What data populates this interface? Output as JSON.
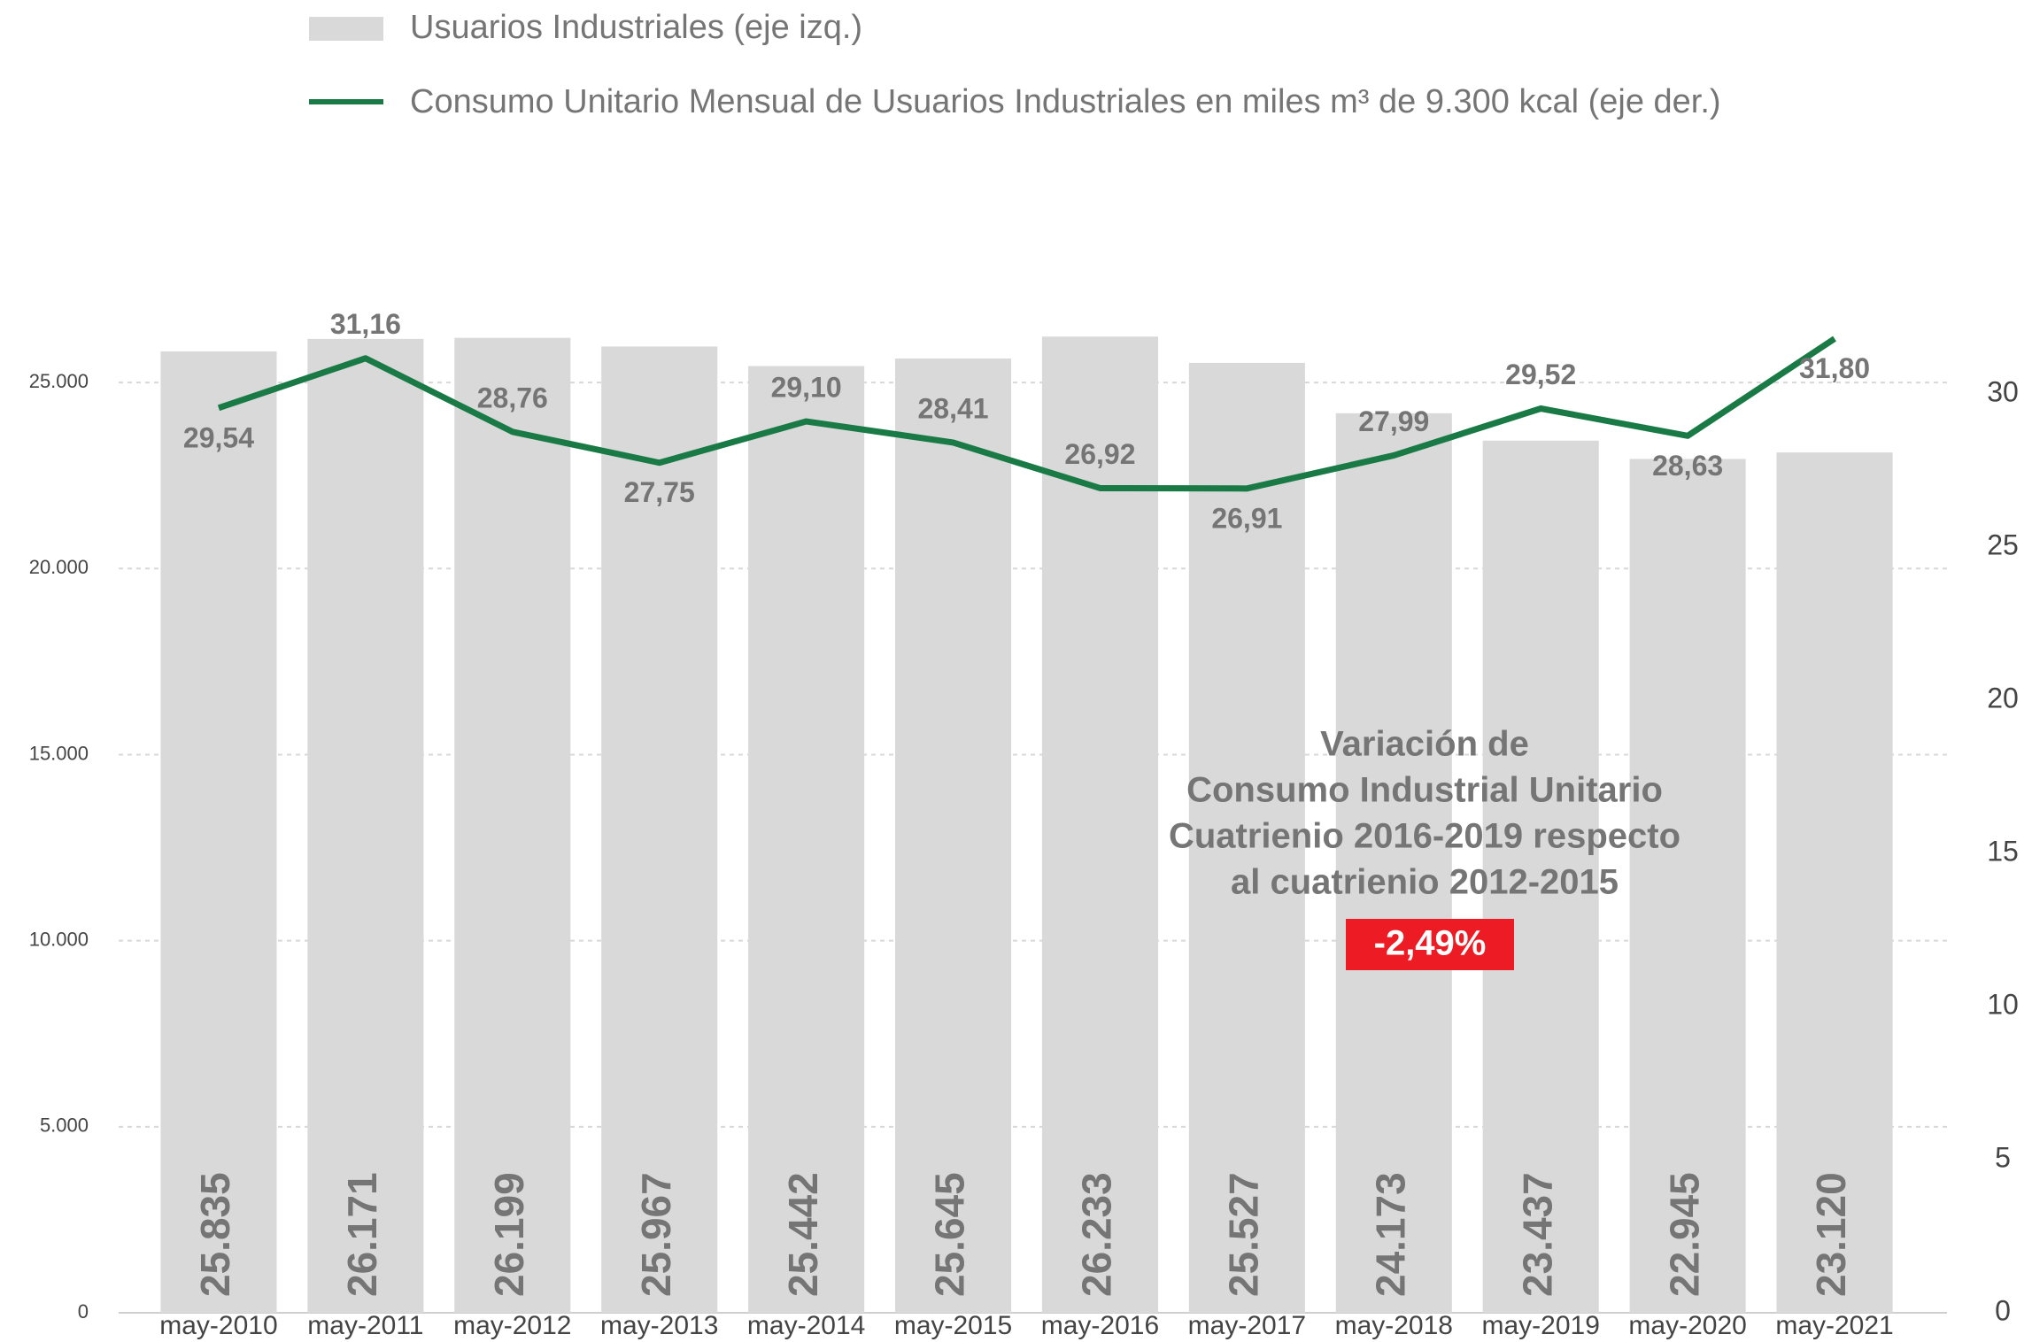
{
  "chart_data": {
    "type": "bar_line",
    "legend": [
      "Usuarios Industriales (eje izq.)",
      "Consumo Unitario Mensual de Usuarios Industriales en miles m³ de 9.300 kcal (eje der.)"
    ],
    "categories": [
      "may-2010",
      "may-2011",
      "may-2012",
      "may-2013",
      "may-2014",
      "may-2015",
      "may-2016",
      "may-2017",
      "may-2018",
      "may-2019",
      "may-2020",
      "may-2021"
    ],
    "series": [
      {
        "name": "Usuarios Industriales (eje izq.)",
        "type": "bar",
        "color": "#d9d9d9",
        "values": [
          25835,
          26171,
          26199,
          25967,
          25442,
          25645,
          26233,
          25527,
          24173,
          23437,
          22945,
          23120
        ],
        "value_labels": [
          "25.835",
          "26.171",
          "26.199",
          "25.967",
          "25.442",
          "25.645",
          "26.233",
          "25.527",
          "24.173",
          "23.437",
          "22.945",
          "23.120"
        ]
      },
      {
        "name": "Consumo Unitario Mensual de Usuarios Industriales en miles m³ de 9.300 kcal (eje der.)",
        "type": "line",
        "axis": "y2",
        "color": "#1a7a45",
        "values": [
          29.54,
          31.16,
          28.76,
          27.75,
          29.1,
          28.41,
          26.92,
          26.91,
          27.99,
          29.52,
          28.63,
          31.8
        ],
        "value_labels": [
          "29,54",
          "31,16",
          "28,76",
          "27,75",
          "29,10",
          "28,41",
          "26,92",
          "26,91",
          "27,99",
          "29,52",
          "28,63",
          "31,80"
        ]
      }
    ],
    "ylim": [
      0,
      27000
    ],
    "yticks": [
      {
        "value": 0,
        "label": "0"
      },
      {
        "value": 5000,
        "label": "5.000"
      },
      {
        "value": 10000,
        "label": "10.000"
      },
      {
        "value": 15000,
        "label": "15.000"
      },
      {
        "value": 20000,
        "label": "20.000"
      },
      {
        "value": 25000,
        "label": "25.000"
      }
    ],
    "y2lim": [
      0,
      32.8
    ],
    "y2ticks": [
      0,
      5,
      10,
      15,
      20,
      25,
      30
    ],
    "grid": true,
    "annotation": {
      "lines": [
        "Variación de",
        "Consumo Industrial Unitario",
        "Cuatrienio 2016-2019 respecto",
        "al cuatrienio 2012-2015"
      ],
      "highlight": "-2,49%",
      "highlight_color": "#ed1c24"
    }
  }
}
